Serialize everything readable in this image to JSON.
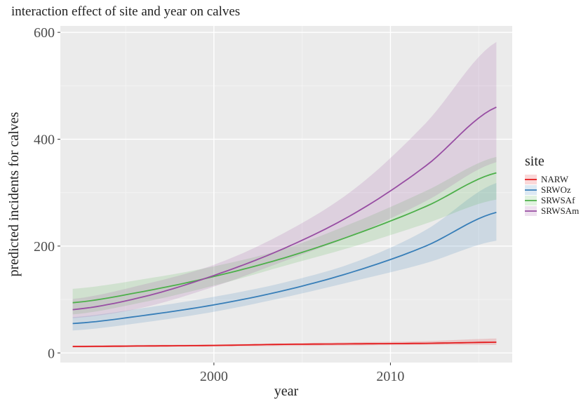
{
  "chart_data": {
    "type": "line",
    "title": "interaction effect of site and year on calves",
    "xlabel": "year",
    "ylabel": "predicted incidents for calves",
    "xlim": [
      1991.3,
      2016.9
    ],
    "ylim": [
      -18,
      612
    ],
    "x_ticks": [
      2000,
      2010
    ],
    "x_tick_labels": [
      "2000",
      "2010"
    ],
    "y_ticks": [
      0,
      200,
      400,
      600
    ],
    "y_tick_labels": [
      "0",
      "200",
      "400",
      "600"
    ],
    "grid": true,
    "legend": {
      "title": "site",
      "position": "right"
    },
    "x": [
      1992,
      1996,
      2000,
      2004,
      2008,
      2012,
      2016
    ],
    "series": [
      {
        "name": "NARW",
        "color": "#e41a1c",
        "values": [
          12,
          13,
          14,
          16,
          17,
          18,
          20
        ],
        "lower": [
          10,
          11,
          12,
          13,
          14,
          15,
          15
        ],
        "upper": [
          14,
          15,
          16,
          18,
          20,
          22,
          27
        ]
      },
      {
        "name": "SRWOz",
        "color": "#377eb8",
        "values": [
          55,
          70,
          90,
          117,
          153,
          200,
          263
        ],
        "lower": [
          42,
          57,
          77,
          104,
          135,
          168,
          210
        ],
        "upper": [
          67,
          84,
          105,
          132,
          170,
          230,
          318
        ]
      },
      {
        "name": "SRWSAf",
        "color": "#4daf4a",
        "values": [
          94,
          115,
          143,
          178,
          222,
          274,
          337
        ],
        "lower": [
          72,
          95,
          126,
          163,
          200,
          242,
          287
        ],
        "upper": [
          120,
          138,
          162,
          195,
          245,
          303,
          367
        ]
      },
      {
        "name": "SRWSAm",
        "color": "#984ea3",
        "values": [
          81,
          105,
          145,
          196,
          262,
          350,
          460
        ],
        "lower": [
          65,
          85,
          124,
          172,
          222,
          284,
          357
        ],
        "upper": [
          101,
          128,
          165,
          225,
          308,
          430,
          582
        ]
      }
    ]
  }
}
